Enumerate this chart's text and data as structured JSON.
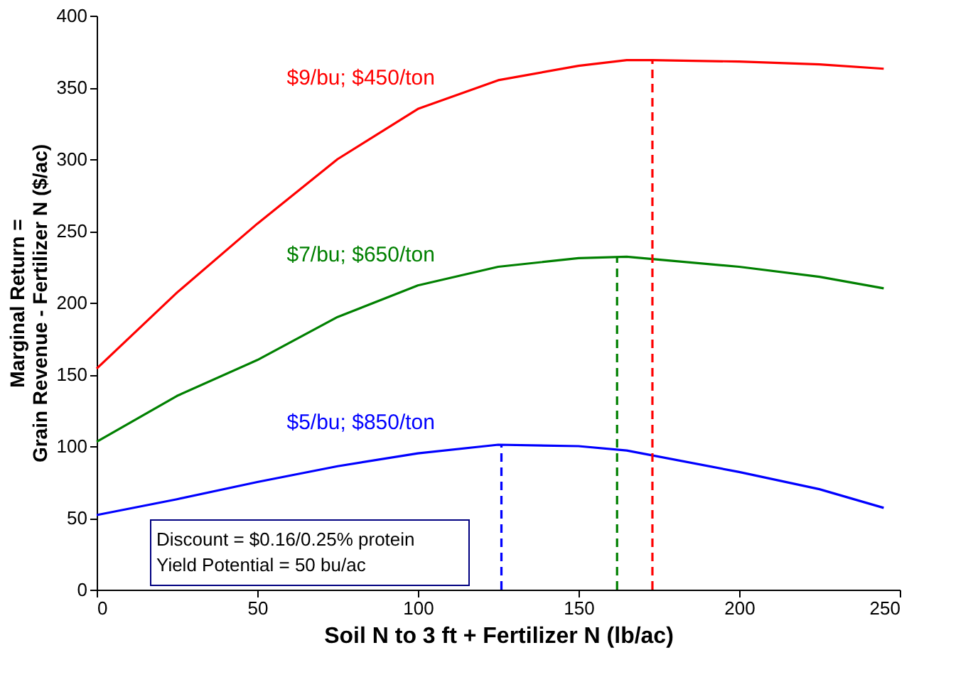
{
  "chart_data": {
    "type": "line",
    "xlabel": "Soil N to 3 ft + Fertilizer N (lb/ac)",
    "ylabel": "Marginal Return =\nGrain Revenue - Fertilizer N ($/ac)",
    "xlim": [
      0,
      250
    ],
    "xticks": [
      0,
      50,
      100,
      150,
      200,
      250
    ],
    "ylim": [
      0,
      400
    ],
    "yticks": [
      0,
      50,
      100,
      150,
      200,
      250,
      300,
      350,
      400
    ],
    "grid": false,
    "marker": "none",
    "line_style": "solid",
    "series": [
      {
        "name": "$9/bu; $450/ton",
        "color": "#ff0000",
        "x": [
          0,
          25,
          50,
          75,
          100,
          125,
          150,
          165,
          173,
          200,
          225,
          245
        ],
        "values": [
          154,
          207,
          255,
          300,
          335,
          355,
          365,
          369,
          369,
          368,
          366,
          363
        ]
      },
      {
        "name": "$7/bu; $650/ton",
        "color": "#008000",
        "x": [
          0,
          25,
          50,
          75,
          100,
          125,
          150,
          165,
          200,
          225,
          245
        ],
        "values": [
          103,
          135,
          160,
          190,
          212,
          225,
          231,
          232,
          225,
          218,
          210
        ]
      },
      {
        "name": "$5/bu; $850/ton",
        "color": "#0000ff",
        "x": [
          0,
          25,
          50,
          75,
          100,
          125,
          150,
          165,
          200,
          225,
          245
        ],
        "values": [
          52,
          63,
          75,
          86,
          95,
          101,
          100,
          97,
          82,
          70,
          57
        ]
      },
      {
        "type": "line",
        "line_style": "dashed",
        "color": "#ff0000",
        "x": [
          173,
          173
        ],
        "values": [
          0,
          369
        ]
      },
      {
        "type": "line",
        "line_style": "dashed",
        "color": "#008000",
        "x": [
          162,
          162
        ],
        "values": [
          0,
          232
        ]
      },
      {
        "type": "line",
        "line_style": "dashed",
        "color": "#0000ff",
        "x": [
          126,
          126
        ],
        "values": [
          0,
          101
        ]
      }
    ],
    "annotations": [
      "Discount = $0.16/0.25% protein",
      "Yield Potential = 50 bu/ac"
    ]
  }
}
